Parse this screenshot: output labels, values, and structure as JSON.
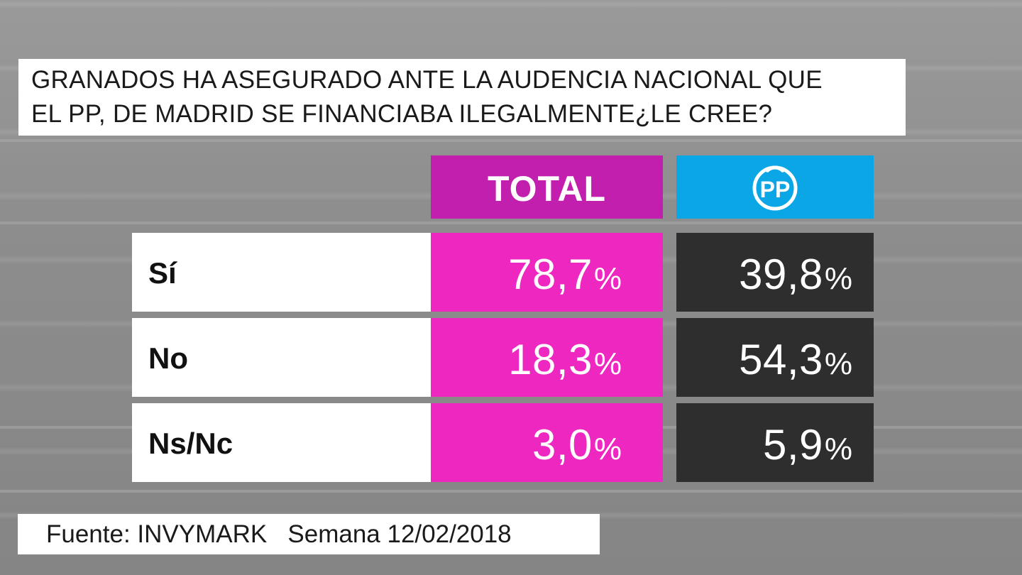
{
  "question": {
    "line1": "GRANADOS HA ASEGURADO ANTE LA AUDENCIA NACIONAL QUE",
    "line2": "EL PP, DE MADRID SE FINANCIABA ILEGALMENTE¿LE CREE?"
  },
  "columns": {
    "total_label": "TOTAL",
    "pp_logo_text": "PP",
    "pp_logo_icon": "pp-party-logo"
  },
  "rows": [
    {
      "label": "Sí",
      "total": "78,7",
      "pp": "39,8"
    },
    {
      "label": "No",
      "total": "18,3",
      "pp": "54,3"
    },
    {
      "label": "Ns/Nc",
      "total": "3,0",
      "pp": "5,9"
    }
  ],
  "percent_sign": "%",
  "source": {
    "text": "Fuente: INVYMARK   Semana 12/02/2018"
  },
  "colors": {
    "total_header": "#c21fae",
    "total_cells": "#ee27c0",
    "pp_header": "#0aa6e6",
    "pp_cells": "#2e2e2e"
  },
  "chart_data": {
    "type": "table",
    "title": "GRANADOS HA ASEGURADO ANTE LA AUDENCIA NACIONAL QUE EL PP, DE MADRID SE FINANCIABA ILEGALMENTE¿LE CREE?",
    "categories": [
      "Sí",
      "No",
      "Ns/Nc"
    ],
    "series": [
      {
        "name": "TOTAL",
        "values": [
          78.7,
          18.3,
          3.0
        ]
      },
      {
        "name": "PP",
        "values": [
          39.8,
          54.3,
          5.9
        ]
      }
    ],
    "unit": "%"
  }
}
